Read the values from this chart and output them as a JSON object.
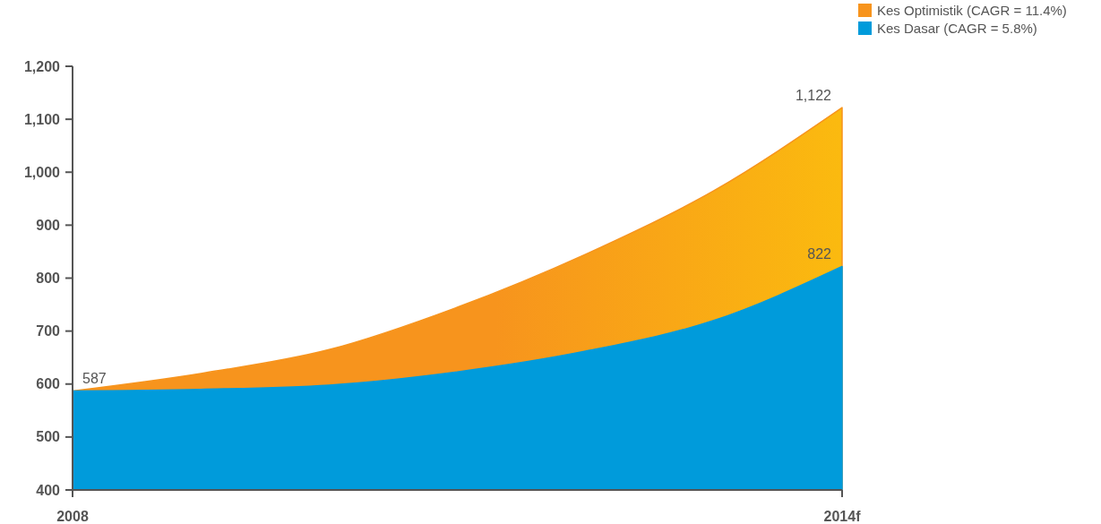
{
  "chart_data": {
    "type": "area",
    "categories": [
      "2008",
      null,
      null,
      null,
      null,
      null,
      "2014f"
    ],
    "series": [
      {
        "name": "Kes Optimistik (CAGR = 11.4%)",
        "color": "#f7941d",
        "values": [
          587,
          620,
          665,
          745,
          845,
          965,
          1122
        ],
        "value_labels": [
          "587",
          null,
          null,
          null,
          null,
          null,
          "1,122"
        ]
      },
      {
        "name": "Kes Dasar (CAGR = 5.8%)",
        "color": "#009bdb",
        "values": [
          587,
          590,
          598,
          623,
          662,
          720,
          822
        ],
        "value_labels": [
          null,
          null,
          null,
          null,
          null,
          null,
          "822"
        ]
      }
    ],
    "ylim": [
      400,
      1200
    ],
    "yticks": [
      {
        "value": 400,
        "label": "400"
      },
      {
        "value": 500,
        "label": "500"
      },
      {
        "value": 600,
        "label": "600"
      },
      {
        "value": 700,
        "label": "700"
      },
      {
        "value": 800,
        "label": "800"
      },
      {
        "value": 900,
        "label": "900"
      },
      {
        "value": 1000,
        "label": "1,000"
      },
      {
        "value": 1100,
        "label": "1,100"
      },
      {
        "value": 1200,
        "label": "1,200"
      }
    ],
    "legend": "top right",
    "stacked": false
  }
}
